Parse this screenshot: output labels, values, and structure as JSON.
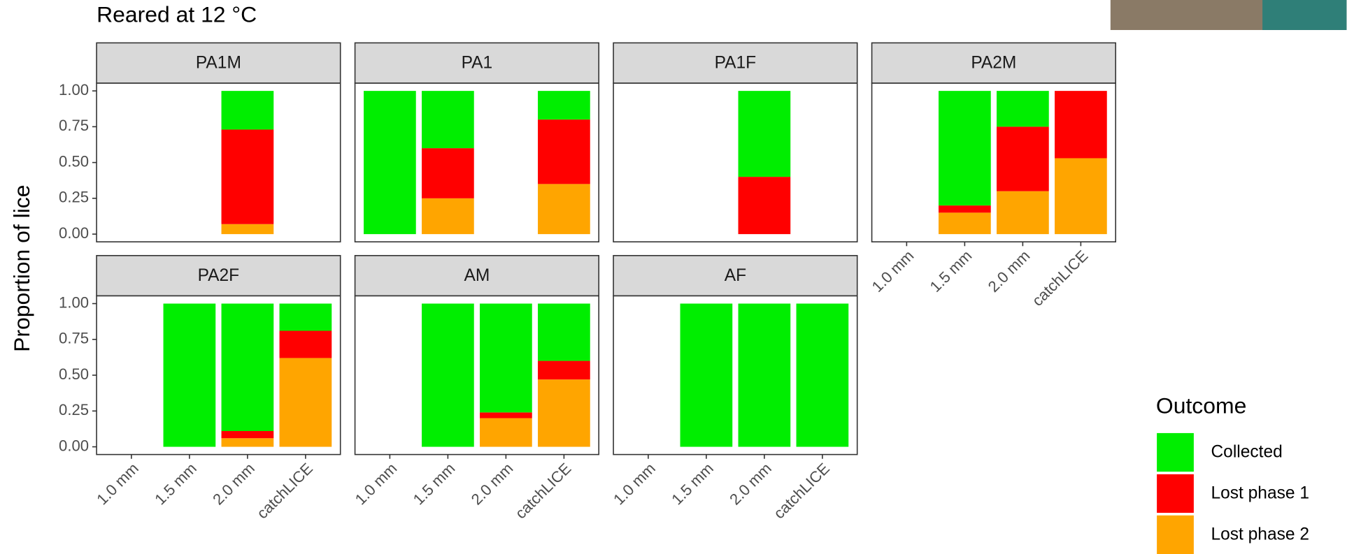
{
  "chart_data": {
    "type": "bar",
    "stacked": true,
    "title": "Reared at 12 °C",
    "ylabel": "Proportion of lice",
    "legend_title": "Outcome",
    "legend_position": "right",
    "grid": false,
    "categories": [
      "1.0 mm",
      "1.5 mm",
      "2.0 mm",
      "catchLICE"
    ],
    "ylim": [
      0,
      1
    ],
    "yticks": [
      {
        "value": 0,
        "label": "0.00"
      },
      {
        "value": 0.25,
        "label": "0.25"
      },
      {
        "value": 0.5,
        "label": "0.50"
      },
      {
        "value": 0.75,
        "label": "0.75"
      },
      {
        "value": 1,
        "label": "1.00"
      }
    ],
    "series": [
      {
        "name": "Collected",
        "color": "#00ee00"
      },
      {
        "name": "Lost phase 1",
        "color": "#ff0000"
      },
      {
        "name": "Lost phase 2",
        "color": "#ffa500"
      }
    ],
    "facets": [
      {
        "title": "PA1M",
        "series": [
          {
            "values": [
              null,
              null,
              0.27,
              null
            ]
          },
          {
            "values": [
              null,
              null,
              0.66,
              null
            ]
          },
          {
            "values": [
              null,
              null,
              0.07,
              null
            ]
          }
        ]
      },
      {
        "title": "PA1",
        "series": [
          {
            "values": [
              1,
              0.4,
              null,
              0.2
            ]
          },
          {
            "values": [
              0,
              0.35,
              null,
              0.45
            ]
          },
          {
            "values": [
              0,
              0.25,
              null,
              0.35
            ]
          }
        ]
      },
      {
        "title": "PA1F",
        "series": [
          {
            "values": [
              null,
              null,
              0.6,
              null
            ]
          },
          {
            "values": [
              null,
              null,
              0.4,
              null
            ]
          },
          {
            "values": [
              null,
              null,
              0,
              null
            ]
          }
        ]
      },
      {
        "title": "PA2M",
        "series": [
          {
            "values": [
              null,
              0.8,
              0.25,
              0
            ]
          },
          {
            "values": [
              null,
              0.05,
              0.45,
              0.47
            ]
          },
          {
            "values": [
              null,
              0.15,
              0.3,
              0.53
            ]
          }
        ]
      },
      {
        "title": "PA2F",
        "series": [
          {
            "values": [
              null,
              1,
              0.89,
              0.19
            ]
          },
          {
            "values": [
              null,
              0,
              0.05,
              0.19
            ]
          },
          {
            "values": [
              null,
              0,
              0.06,
              0.62
            ]
          }
        ]
      },
      {
        "title": "AM",
        "series": [
          {
            "values": [
              null,
              1,
              0.76,
              0.4
            ]
          },
          {
            "values": [
              null,
              0,
              0.04,
              0.13
            ]
          },
          {
            "values": [
              null,
              0,
              0.2,
              0.47
            ]
          }
        ]
      },
      {
        "title": "AF",
        "series": [
          {
            "values": [
              null,
              1,
              1,
              1
            ]
          },
          {
            "values": [
              null,
              0,
              0,
              0
            ]
          },
          {
            "values": [
              null,
              0,
              0,
              0
            ]
          }
        ]
      }
    ]
  }
}
